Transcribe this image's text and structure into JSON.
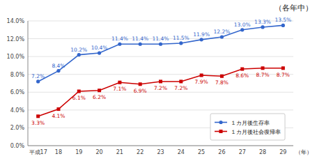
{
  "chart_data": {
    "type": "line",
    "title": "（各年中）",
    "x_label": "（年）",
    "categories": [
      "平成17",
      "18",
      "19",
      "20",
      "21",
      "22",
      "23",
      "24",
      "25",
      "26",
      "27",
      "28",
      "29"
    ],
    "series": [
      {
        "name": "１カ月後生存率",
        "color": "#3366CC",
        "marker": "circle",
        "values": [
          7.2,
          8.4,
          10.2,
          10.4,
          11.4,
          11.4,
          11.4,
          11.5,
          11.9,
          12.2,
          13.0,
          13.3,
          13.5
        ],
        "value_labels": [
          "7.2%",
          "8.4%",
          "10.2%",
          "10.4%",
          "11.4%",
          "11.4%",
          "11.4%",
          "11.5%",
          "11.9%",
          "12.2%",
          "13.0%",
          "13.3%",
          "13.5%"
        ]
      },
      {
        "name": "１カ月後社会復帰率",
        "color": "#CC0000",
        "marker": "square",
        "values": [
          3.3,
          4.1,
          6.1,
          6.2,
          7.1,
          6.9,
          7.2,
          7.2,
          7.9,
          7.8,
          8.6,
          8.7,
          8.7
        ],
        "value_labels": [
          "3.3%",
          "4.1%",
          "6.1%",
          "6.2%",
          "7.1%",
          "6.9%",
          "7.2%",
          "7.2%",
          "7.9%",
          "7.8%",
          "8.6%",
          "8.7%",
          "8.7%"
        ]
      }
    ],
    "ylim": [
      0.0,
      14.0
    ],
    "yticks": [
      {
        "value": 0.0,
        "label": "0.0%"
      },
      {
        "value": 2.0,
        "label": "2.0%"
      },
      {
        "value": 4.0,
        "label": "4.0%"
      },
      {
        "value": 6.0,
        "label": "6.0%"
      },
      {
        "value": 8.0,
        "label": "8.0%"
      },
      {
        "value": 10.0,
        "label": "10.0%"
      },
      {
        "value": 12.0,
        "label": "12.0%"
      },
      {
        "value": 14.0,
        "label": "14.0%"
      }
    ],
    "grid": true,
    "legend": "lower right",
    "data_labels": true
  }
}
